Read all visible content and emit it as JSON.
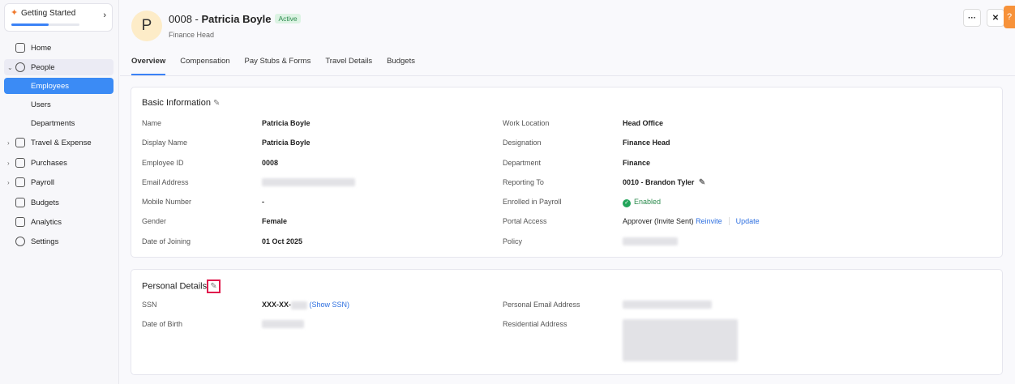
{
  "sidebar": {
    "getting_started": "Getting Started",
    "progress": 0.55,
    "items": [
      {
        "label": "Home"
      },
      {
        "label": "People"
      },
      {
        "label": "Employees"
      },
      {
        "label": "Users"
      },
      {
        "label": "Departments"
      },
      {
        "label": "Travel & Expense"
      },
      {
        "label": "Purchases"
      },
      {
        "label": "Payroll"
      },
      {
        "label": "Budgets"
      },
      {
        "label": "Analytics"
      },
      {
        "label": "Settings"
      }
    ]
  },
  "header": {
    "avatar": "P",
    "id": "0008 - ",
    "name": "Patricia Boyle",
    "status": "Active",
    "designation": "Finance Head",
    "more": "···",
    "close": "✕",
    "help": "?"
  },
  "tabs": [
    "Overview",
    "Compensation",
    "Pay Stubs & Forms",
    "Travel Details",
    "Budgets"
  ],
  "basic": {
    "title": "Basic Information",
    "left": [
      [
        "Name",
        "Patricia Boyle"
      ],
      [
        "Display Name",
        "Patricia Boyle"
      ],
      [
        "Employee ID",
        "0008"
      ],
      [
        "Email Address",
        ""
      ],
      [
        "Mobile Number",
        "-"
      ],
      [
        "Gender",
        "Female"
      ],
      [
        "Date of Joining",
        "01 Oct 2025"
      ]
    ],
    "right": [
      [
        "Work Location",
        "Head Office"
      ],
      [
        "Designation",
        "Finance Head"
      ],
      [
        "Department",
        "Finance"
      ],
      [
        "Reporting To",
        "0010 - Brandon Tyler"
      ],
      [
        "Enrolled in Payroll",
        "Enabled"
      ],
      [
        "Portal Access",
        "Approver (Invite Sent)"
      ],
      [
        "Policy",
        ""
      ]
    ],
    "reinvite": "Reinvite",
    "update": "Update"
  },
  "personal": {
    "title": "Personal Details",
    "ssn_label": "SSN",
    "ssn_value": "XXX-XX-",
    "show_ssn": "(Show SSN)",
    "dob_label": "Date of Birth",
    "email_label": "Personal Email Address",
    "address_label": "Residential Address"
  }
}
